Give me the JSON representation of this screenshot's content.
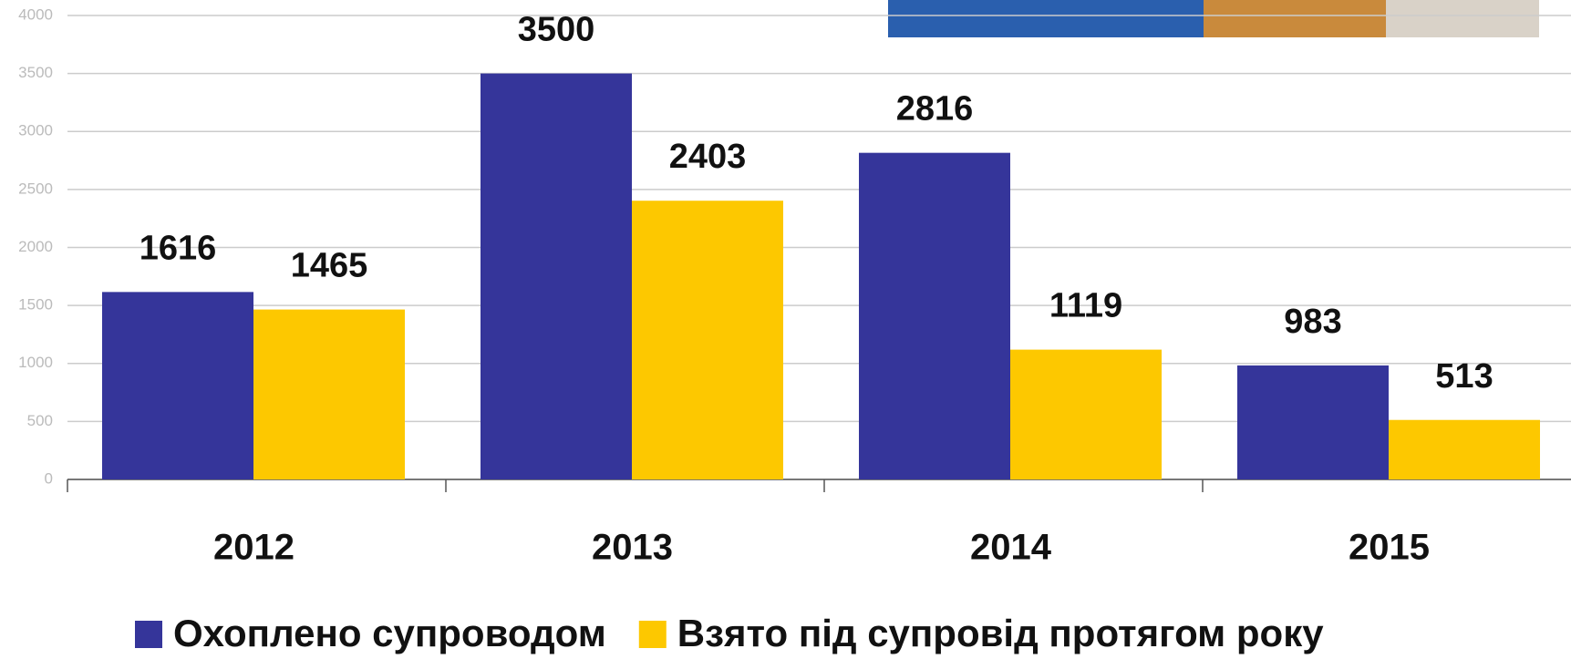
{
  "chart_data": {
    "type": "bar",
    "categories": [
      "2012",
      "2013",
      "2014",
      "2015"
    ],
    "series": [
      {
        "name": "Охоплено супроводом",
        "color": "#35359a",
        "values": [
          1616,
          3500,
          2816,
          983
        ]
      },
      {
        "name": "Взято під супровід протягом року",
        "color": "#fdc800",
        "values": [
          1465,
          2403,
          1119,
          513
        ]
      }
    ],
    "ylim": [
      0,
      4000
    ],
    "yticks": [
      0,
      500,
      1000,
      1500,
      2000,
      2500,
      3000,
      3500,
      4000
    ],
    "grid": true
  }
}
